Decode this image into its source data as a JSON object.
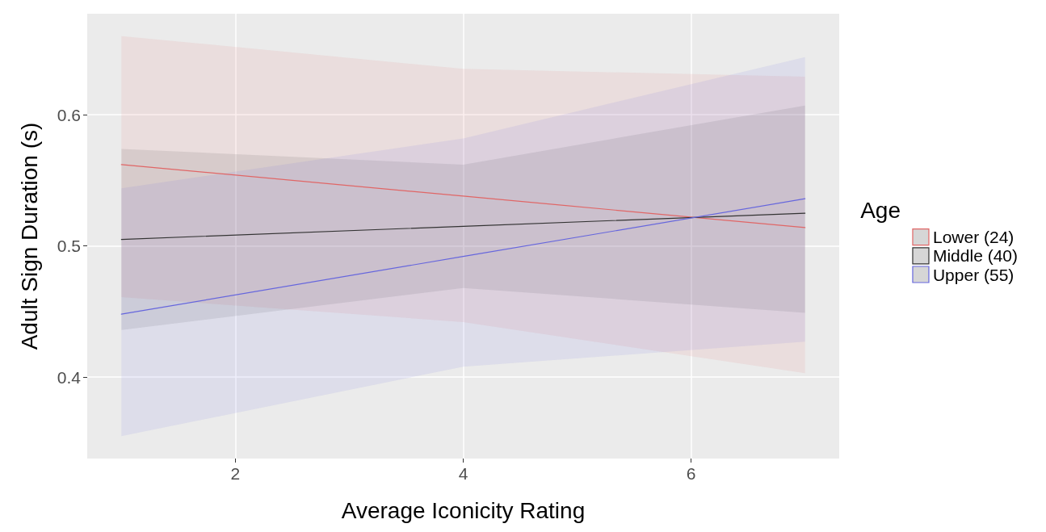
{
  "chart_data": {
    "type": "line",
    "xlabel": "Average Iconicity Rating",
    "ylabel": "Adult Sign Duration (s)",
    "legend_title": "Age",
    "xlim": [
      0.7,
      7.3
    ],
    "ylim": [
      0.338,
      0.677
    ],
    "xticks": [
      2,
      4,
      6
    ],
    "yticks": [
      0.4,
      0.5,
      0.6
    ],
    "grid": true,
    "legend": "right",
    "marker": "none",
    "line_style": "solid",
    "series": [
      {
        "name": "Lower (24)",
        "color": "#e06666",
        "x": [
          1,
          4,
          7
        ],
        "values": [
          0.562,
          0.538,
          0.514
        ],
        "lower": [
          0.461,
          0.442,
          0.403
        ],
        "upper": [
          0.66,
          0.635,
          0.629
        ]
      },
      {
        "name": "Middle (40)",
        "color": "#333333",
        "x": [
          1,
          4,
          7
        ],
        "values": [
          0.505,
          0.515,
          0.525
        ],
        "lower": [
          0.436,
          0.468,
          0.449
        ],
        "upper": [
          0.574,
          0.562,
          0.607
        ]
      },
      {
        "name": "Upper (55)",
        "color": "#6666dd",
        "x": [
          1,
          4,
          7
        ],
        "values": [
          0.448,
          0.492,
          0.536
        ],
        "lower": [
          0.355,
          0.408,
          0.427
        ],
        "upper": [
          0.544,
          0.582,
          0.644
        ]
      }
    ]
  }
}
